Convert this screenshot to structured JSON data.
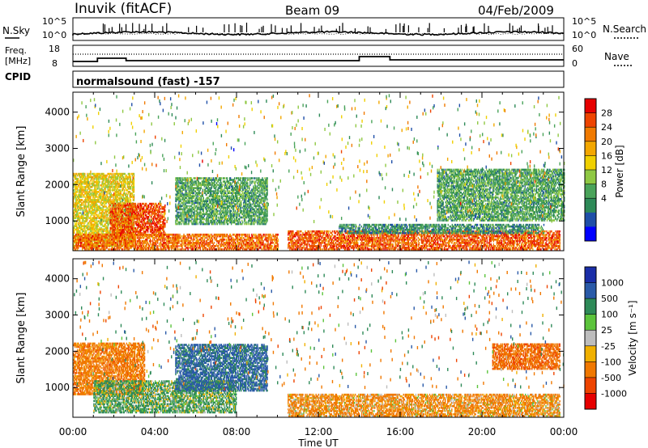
{
  "header": {
    "station": "Inuvik (fitACF)",
    "beam": "Beam 09",
    "date": "04/Feb/2009"
  },
  "nsky": {
    "label": "N.Sky",
    "tick_top": "10^5",
    "tick_bottom": "10^0",
    "right_tick_top": "10^5",
    "right_tick_bottom": "10^0",
    "right_label": "N.Search"
  },
  "freq": {
    "label_line1": "Freq.",
    "label_line2": "[MHz]",
    "tick_top": "18",
    "tick_bottom": "8",
    "right_tick_top": "60",
    "right_tick_bottom": "0",
    "right_label": "Nave"
  },
  "cpid": {
    "label": "CPID",
    "program": "normalsound (fast) -157"
  },
  "axes": {
    "ylabel": "Slant Range [km]",
    "xlabel": "Time UT",
    "y_ticks": [
      "1000",
      "2000",
      "3000",
      "4000"
    ],
    "x_ticks": [
      "00:00",
      "04:00",
      "08:00",
      "12:00",
      "16:00",
      "20:00",
      "00:00"
    ]
  },
  "power_scale": {
    "label": "Power [dB]",
    "ticks": [
      "4",
      "8",
      "12",
      "16",
      "20",
      "24",
      "28"
    ],
    "colors": [
      "#0000ff",
      "#1f4fa8",
      "#2e8a58",
      "#4aa35a",
      "#8fc843",
      "#f0d000",
      "#f3a700",
      "#f07a00",
      "#ee4400",
      "#e60000"
    ]
  },
  "velocity_scale": {
    "label": "Velocity [m s⁻¹]",
    "ticks": [
      "1000",
      "500",
      "100",
      "25",
      "-25",
      "-100",
      "-500",
      "-1000"
    ],
    "colors": [
      "#1a2ea8",
      "#2a5aa8",
      "#2e8a58",
      "#5cc43c",
      "#bdbdbd",
      "#f0b000",
      "#f07800",
      "#ee4400",
      "#e60000"
    ]
  },
  "chart_data": [
    {
      "type": "heatmap",
      "title": "Power",
      "xlabel": "Time UT",
      "ylabel": "Slant Range [km]",
      "x_range_hours": [
        0,
        24
      ],
      "y_range_km": [
        180,
        4550
      ],
      "colorbar": {
        "label": "Power [dB]",
        "range": [
          0,
          32
        ]
      },
      "regions": [
        {
          "t": [
            0.0,
            3.0
          ],
          "r": [
            300,
            2300
          ],
          "level": 18
        },
        {
          "t": [
            1.8,
            4.5
          ],
          "r": [
            600,
            1500
          ],
          "level": 28
        },
        {
          "t": [
            0.0,
            10.0
          ],
          "r": [
            200,
            650
          ],
          "level": 26
        },
        {
          "t": [
            5.0,
            9.5
          ],
          "r": [
            900,
            2200
          ],
          "level": 10
        },
        {
          "t": [
            10.5,
            23.8
          ],
          "r": [
            200,
            700
          ],
          "level": 27
        },
        {
          "t": [
            13.0,
            23.0
          ],
          "r": [
            650,
            900
          ],
          "level": 8
        },
        {
          "t": [
            17.8,
            24.0
          ],
          "r": [
            1000,
            2400
          ],
          "level": 10
        }
      ]
    },
    {
      "type": "heatmap",
      "title": "Velocity",
      "xlabel": "Time UT",
      "ylabel": "Slant Range [km]",
      "x_range_hours": [
        0,
        24
      ],
      "y_range_km": [
        180,
        4550
      ],
      "colorbar": {
        "label": "Velocity [m s⁻¹]",
        "range": [
          -1000,
          1000
        ]
      },
      "regions": [
        {
          "t": [
            0.0,
            3.5
          ],
          "r": [
            800,
            2200
          ],
          "velocity": -300
        },
        {
          "t": [
            1.0,
            8.0
          ],
          "r": [
            300,
            1200
          ],
          "velocity": 150
        },
        {
          "t": [
            5.0,
            9.5
          ],
          "r": [
            900,
            2200
          ],
          "velocity": 600
        },
        {
          "t": [
            10.5,
            23.8
          ],
          "r": [
            200,
            800
          ],
          "velocity": -200
        },
        {
          "t": [
            20.5,
            23.8
          ],
          "r": [
            1500,
            2200
          ],
          "velocity": -400
        }
      ]
    }
  ]
}
